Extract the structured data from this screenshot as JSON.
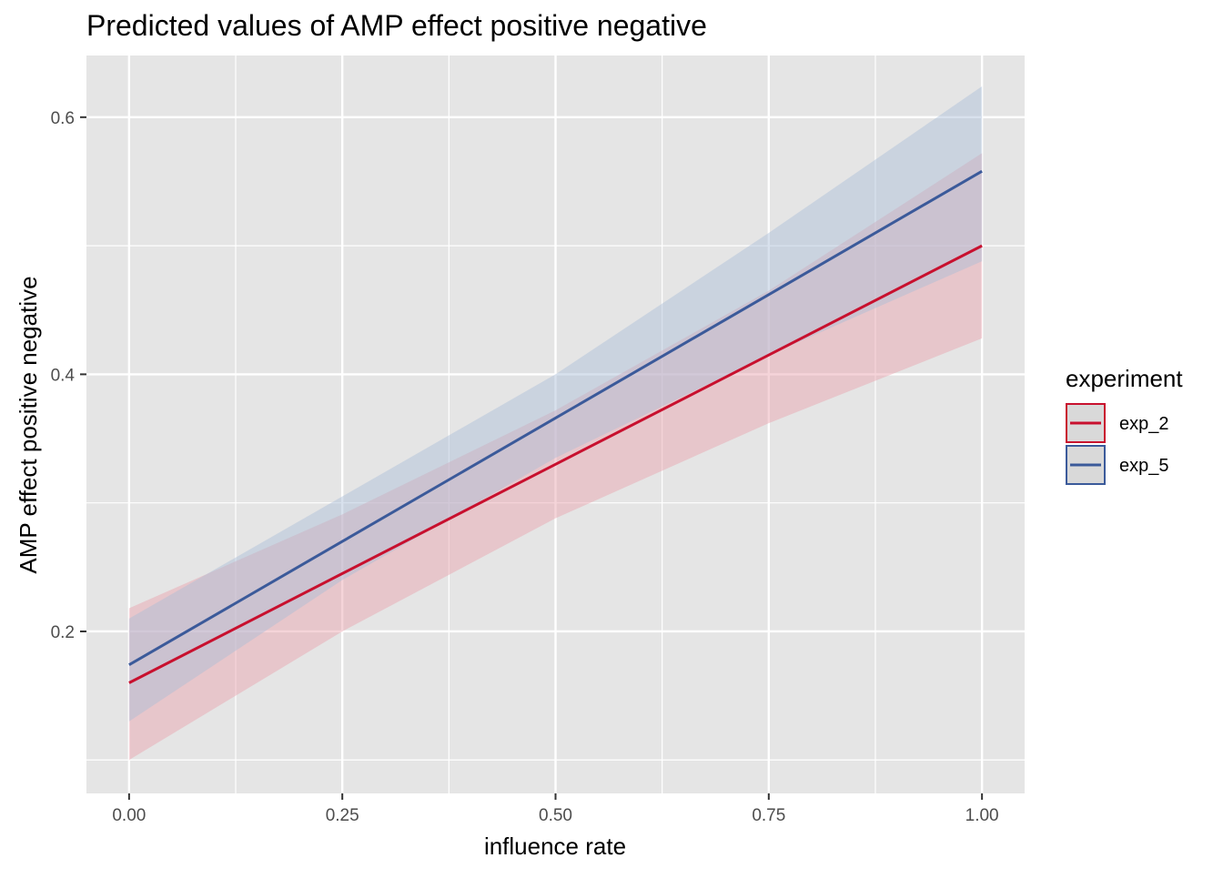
{
  "chart_data": {
    "type": "line",
    "title": "Predicted values of AMP effect positive negative",
    "xlabel": "influence rate",
    "ylabel": "AMP effect positive negative",
    "xlim": [
      -0.05,
      1.05
    ],
    "ylim": [
      0.074,
      0.648
    ],
    "x_ticks": [
      0.0,
      0.25,
      0.5,
      0.75,
      1.0
    ],
    "x_tick_labels": [
      "0.00",
      "0.25",
      "0.50",
      "0.75",
      "1.00"
    ],
    "y_ticks": [
      0.2,
      0.4,
      0.6
    ],
    "y_tick_labels": [
      "0.2",
      "0.4",
      "0.6"
    ],
    "grid": true,
    "legend": {
      "title": "experiment",
      "position": "right"
    },
    "series": [
      {
        "name": "exp_2",
        "color": "#c8102e",
        "x": [
          0.0,
          0.25,
          0.5,
          0.75,
          1.0
        ],
        "predicted": [
          0.16,
          0.245,
          0.33,
          0.415,
          0.5
        ],
        "conf_low": [
          0.1,
          0.2,
          0.288,
          0.362,
          0.428
        ],
        "conf_high": [
          0.218,
          0.291,
          0.372,
          0.465,
          0.572
        ]
      },
      {
        "name": "exp_5",
        "color": "#3b5a9a",
        "x": [
          0.0,
          0.25,
          0.5,
          0.75,
          1.0
        ],
        "predicted": [
          0.174,
          0.27,
          0.366,
          0.462,
          0.558
        ],
        "conf_low": [
          0.13,
          0.24,
          0.335,
          0.415,
          0.488
        ],
        "conf_high": [
          0.21,
          0.305,
          0.4,
          0.51,
          0.624
        ]
      }
    ]
  }
}
